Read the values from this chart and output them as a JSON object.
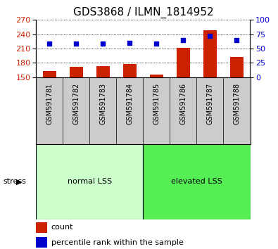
{
  "title": "GDS3868 / ILMN_1814952",
  "categories": [
    "GSM591781",
    "GSM591782",
    "GSM591783",
    "GSM591784",
    "GSM591785",
    "GSM591786",
    "GSM591787",
    "GSM591788"
  ],
  "bar_values": [
    163,
    172,
    173,
    178,
    155,
    211,
    248,
    193
  ],
  "percentile_values": [
    220,
    221,
    221,
    222,
    220,
    228,
    236,
    228
  ],
  "ylim_left": [
    150,
    270
  ],
  "ylim_right": [
    0,
    100
  ],
  "yticks_left": [
    150,
    180,
    210,
    240,
    270
  ],
  "yticks_right": [
    0,
    25,
    50,
    75,
    100
  ],
  "bar_color": "#cc2200",
  "scatter_color": "#0000cc",
  "group1_label": "normal LSS",
  "group2_label": "elevated LSS",
  "group1_indices": [
    0,
    1,
    2,
    3
  ],
  "group2_indices": [
    4,
    5,
    6,
    7
  ],
  "group1_color": "#ccffcc",
  "group2_color": "#55ee55",
  "stress_label": "stress",
  "legend_bar_label": "count",
  "legend_scatter_label": "percentile rank within the sample",
  "xlabel_area_color": "#cccccc",
  "title_fontsize": 11,
  "tick_fontsize": 8,
  "label_fontsize": 8
}
